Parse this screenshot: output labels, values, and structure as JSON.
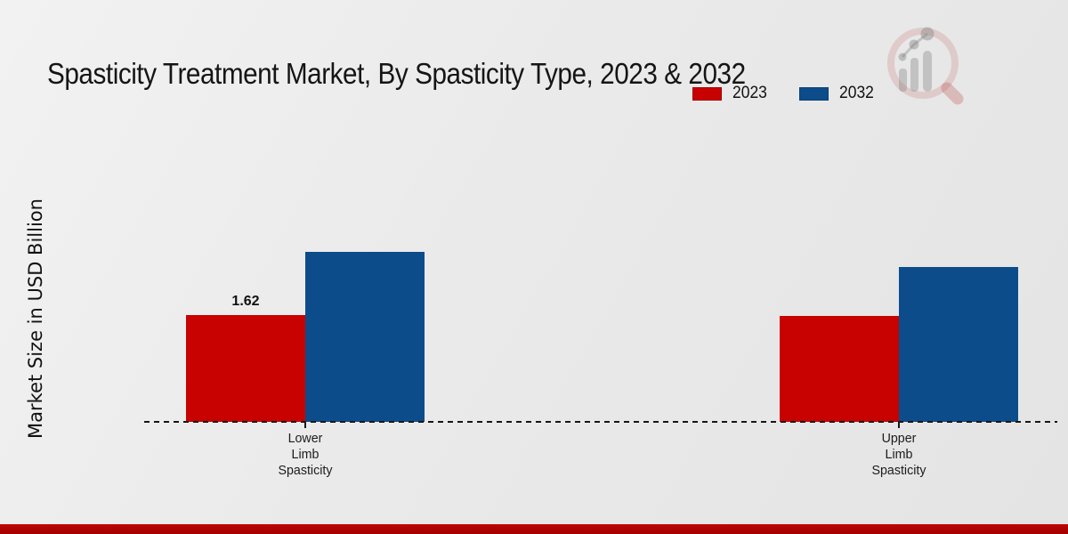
{
  "page": {
    "background_color": "#e9e9e9",
    "footer_bar_color": "#b80300"
  },
  "header": {
    "title": "Spasticity Treatment Market, By Spasticity Type, 2023 & 2032"
  },
  "logo": {
    "icon": "magnifier-bar-chart-logo"
  },
  "chart_data": {
    "type": "bar",
    "title": "Spasticity Treatment Market, By Spasticity Type, 2023 & 2032",
    "xlabel": "",
    "ylabel": "Market Size in USD Billion",
    "categories": [
      "Lower\nLimb\nSpasticity",
      "Upper\nLimb\nSpasticity"
    ],
    "series": [
      {
        "name": "2023",
        "color": "#c80101",
        "values": [
          1.62,
          1.61
        ],
        "labels": [
          "1.62",
          null
        ]
      },
      {
        "name": "2032",
        "color": "#0d4c8a",
        "values": [
          2.58,
          2.35
        ],
        "labels": [
          null,
          null
        ]
      }
    ],
    "ylim": [
      0,
      2.8
    ],
    "grid": false,
    "legend_position": "upper right",
    "baseline_style": "dashed"
  }
}
